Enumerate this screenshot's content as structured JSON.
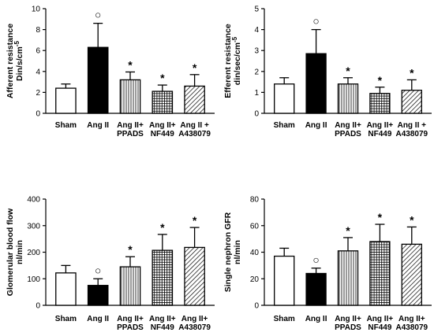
{
  "chart_data": [
    {
      "type": "bar",
      "ylabel_lines": [
        "Afferent resistance",
        "Din/s/cm"
      ],
      "ylabel_superscript": "-5",
      "ylim": [
        0,
        10
      ],
      "yticks": [
        0,
        2,
        4,
        6,
        8,
        10
      ],
      "categories": [
        [
          "Sham"
        ],
        [
          "Ang II"
        ],
        [
          "Ang II+",
          "PPADS"
        ],
        [
          "Ang II+",
          "NF449"
        ],
        [
          "Ang II +",
          "A438079"
        ]
      ],
      "values": [
        2.4,
        6.3,
        3.2,
        2.1,
        2.6
      ],
      "errors": [
        0.4,
        2.3,
        0.75,
        0.6,
        1.1
      ],
      "fills": [
        "white",
        "black",
        "vlines",
        "grid",
        "diag"
      ],
      "markers": [
        "",
        "○",
        "*",
        "*",
        "*"
      ]
    },
    {
      "type": "bar",
      "ylabel_lines": [
        "Efferent resistance",
        "din/sec/cm"
      ],
      "ylabel_superscript": "-5",
      "ylim": [
        0,
        5
      ],
      "yticks": [
        0,
        1,
        2,
        3,
        4,
        5
      ],
      "categories": [
        [
          "Sham"
        ],
        [
          "Ang II"
        ],
        [
          "Ang II+",
          "PPADS"
        ],
        [
          "Ang II+",
          "NF449"
        ],
        [
          "Ang II +",
          "A438079"
        ]
      ],
      "values": [
        1.4,
        2.85,
        1.4,
        0.95,
        1.1
      ],
      "errors": [
        0.3,
        1.15,
        0.3,
        0.3,
        0.5
      ],
      "fills": [
        "white",
        "black",
        "vlines",
        "grid",
        "diag"
      ],
      "markers": [
        "",
        "○",
        "*",
        "*",
        "*"
      ]
    },
    {
      "type": "bar",
      "ylabel_lines": [
        "Glomerular blood flow",
        "nl/min"
      ],
      "ylabel_superscript": "",
      "ylim": [
        0,
        400
      ],
      "yticks": [
        0,
        100,
        200,
        300,
        400
      ],
      "categories": [
        [
          "Sham"
        ],
        [
          "Ang II"
        ],
        [
          "Ang II+",
          "PPADS"
        ],
        [
          "Ang II+",
          "NF449"
        ],
        [
          "Ang II+",
          "A438079"
        ]
      ],
      "values": [
        122,
        75,
        145,
        207,
        218
      ],
      "errors": [
        28,
        25,
        38,
        60,
        75
      ],
      "fills": [
        "white",
        "black",
        "vlines",
        "grid",
        "diag"
      ],
      "markers": [
        "",
        "○",
        "*",
        "*",
        "*"
      ]
    },
    {
      "type": "bar",
      "ylabel_lines": [
        "Single nephron GFR",
        "nl/min"
      ],
      "ylabel_superscript": "",
      "ylim": [
        0,
        80
      ],
      "yticks": [
        0,
        20,
        40,
        60,
        80
      ],
      "categories": [
        [
          "Sham"
        ],
        [
          "Ang II"
        ],
        [
          "Ang II+",
          "PPADS"
        ],
        [
          "Ang II+",
          "NF449"
        ],
        [
          "Ang II+",
          "A438079"
        ]
      ],
      "values": [
        37,
        24,
        41,
        48,
        46
      ],
      "errors": [
        6,
        4,
        10,
        13,
        13
      ],
      "fills": [
        "white",
        "black",
        "vlines",
        "grid",
        "diag"
      ],
      "markers": [
        "",
        "○",
        "*",
        "*",
        "*"
      ]
    }
  ]
}
